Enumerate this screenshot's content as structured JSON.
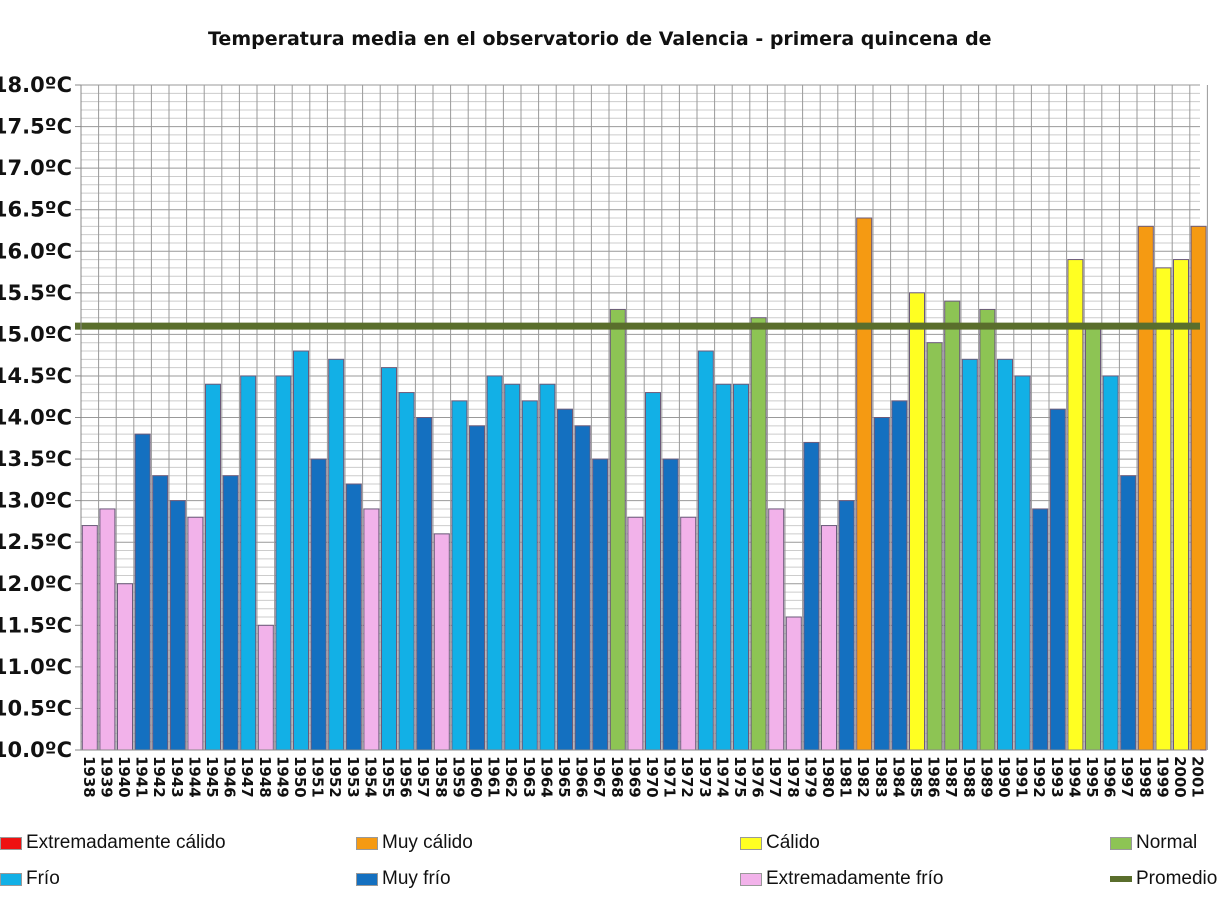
{
  "chart_data": {
    "type": "bar",
    "title": "Temperatura media en el observatorio de Valencia - primera quincena de",
    "xlabel": "",
    "ylabel": "",
    "ylim": [
      10.0,
      18.0
    ],
    "y_ticks": [
      "10.0ºC",
      "10.5ºC",
      "11.0ºC",
      "11.5ºC",
      "12.0ºC",
      "12.5ºC",
      "13.0ºC",
      "13.5ºC",
      "14.0ºC",
      "14.5ºC",
      "15.0ºC",
      "15.5ºC",
      "16.0ºC",
      "16.5ºC",
      "17.0ºC",
      "17.5ºC",
      "18.0ºC"
    ],
    "grid": true,
    "legend_position": "bottom",
    "categories": [
      "1938",
      "1939",
      "1940",
      "1941",
      "1942",
      "1943",
      "1944",
      "1945",
      "1946",
      "1947",
      "1948",
      "1949",
      "1950",
      "1951",
      "1952",
      "1953",
      "1954",
      "1955",
      "1956",
      "1957",
      "1958",
      "1959",
      "1960",
      "1961",
      "1962",
      "1963",
      "1964",
      "1965",
      "1966",
      "1967",
      "1968",
      "1969",
      "1970",
      "1971",
      "1972",
      "1973",
      "1974",
      "1975",
      "1976",
      "1977",
      "1978",
      "1979",
      "1980",
      "1981",
      "1982",
      "1983",
      "1984",
      "1985",
      "1986",
      "1987",
      "1988",
      "1989",
      "1990",
      "1991",
      "1992",
      "1993",
      "1994",
      "1995",
      "1996",
      "1997",
      "1998",
      "1999",
      "2000",
      "2001"
    ],
    "values": [
      12.7,
      12.9,
      12.0,
      13.8,
      13.3,
      13.0,
      12.8,
      14.4,
      13.3,
      14.5,
      11.5,
      14.5,
      14.8,
      13.5,
      14.7,
      13.2,
      12.9,
      14.6,
      14.3,
      14.0,
      12.6,
      14.2,
      13.9,
      14.5,
      14.4,
      14.2,
      14.4,
      14.1,
      13.9,
      13.5,
      15.3,
      12.8,
      14.3,
      13.5,
      12.8,
      14.8,
      14.4,
      14.4,
      15.2,
      12.9,
      11.6,
      13.7,
      12.7,
      13.0,
      16.4,
      14.0,
      14.2,
      15.5,
      14.9,
      15.4,
      14.7,
      15.3,
      14.7,
      14.5,
      12.9,
      14.1,
      15.9,
      15.1,
      14.5,
      13.3,
      16.3,
      15.8,
      15.9,
      16.3
    ],
    "classes": [
      "ef",
      "ef",
      "ef",
      "mf",
      "mf",
      "mf",
      "ef",
      "f",
      "mf",
      "f",
      "ef",
      "f",
      "f",
      "mf",
      "f",
      "mf",
      "ef",
      "f",
      "f",
      "mf",
      "ef",
      "f",
      "mf",
      "f",
      "f",
      "f",
      "f",
      "mf",
      "mf",
      "mf",
      "n",
      "ef",
      "f",
      "mf",
      "ef",
      "f",
      "f",
      "f",
      "n",
      "ef",
      "ef",
      "mf",
      "ef",
      "mf",
      "mc",
      "mf",
      "mf",
      "c",
      "n",
      "n",
      "f",
      "n",
      "f",
      "f",
      "mf",
      "mf",
      "c",
      "n",
      "f",
      "mf",
      "mc",
      "c",
      "c",
      "mc"
    ],
    "average": 15.1,
    "legend": [
      {
        "key": "ec",
        "label": "Extremadamente cálido",
        "color": "#ee1111"
      },
      {
        "key": "mc",
        "label": "Muy cálido",
        "color": "#f59a12"
      },
      {
        "key": "c",
        "label": "Cálido",
        "color": "#ffff22"
      },
      {
        "key": "n",
        "label": "Normal",
        "color": "#8dc454"
      },
      {
        "key": "f",
        "label": "Frío",
        "color": "#12b0e6"
      },
      {
        "key": "mf",
        "label": "Muy frío",
        "color": "#1470c0"
      },
      {
        "key": "ef",
        "label": "Extremadamente frío",
        "color": "#f2b2ea"
      },
      {
        "key": "avg",
        "label": "Promedio",
        "color": "#5a6e2c"
      }
    ]
  }
}
